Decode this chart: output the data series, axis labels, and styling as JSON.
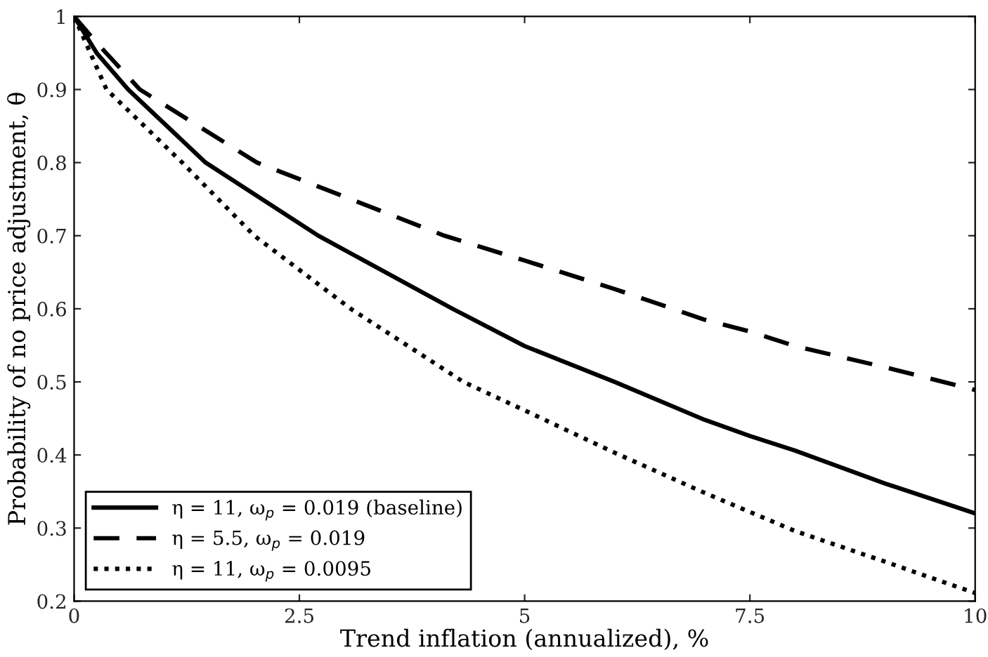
{
  "chart_data": {
    "type": "line",
    "xlabel": "Trend inflation (annualized), %",
    "ylabel": "Probability of no price adjustment, θ",
    "xlim": [
      0,
      10
    ],
    "xticks": [
      0,
      2.5,
      5,
      7.5,
      10
    ],
    "ylim": [
      0.2,
      1
    ],
    "yticks": [
      0.2,
      0.3,
      0.4,
      0.5,
      0.6,
      0.7,
      0.8,
      0.9,
      1
    ],
    "grid": false,
    "legend": "bottom left",
    "series": [
      {
        "name": "η = 11, ω$_{p}$ = 0.019 (baseline)",
        "color": "#000000",
        "line_style": "solid",
        "x": [
          0,
          0.25,
          0.6,
          1.46,
          2.71,
          4.2,
          5,
          6,
          7,
          7.5,
          8,
          9,
          10
        ],
        "values": [
          1,
          0.95,
          0.9,
          0.8,
          0.7,
          0.6,
          0.549,
          0.5,
          0.448,
          0.426,
          0.406,
          0.361,
          0.32
        ]
      },
      {
        "name": "η = 5.5, ω$_{p}$ = 0.019",
        "color": "#000000",
        "line_style": "dashed",
        "x": [
          0,
          0.25,
          0.73,
          2.03,
          4.11,
          5,
          6,
          7,
          7.5,
          8,
          9,
          10
        ],
        "values": [
          1,
          0.964,
          0.9,
          0.8,
          0.7,
          0.666,
          0.627,
          0.585,
          0.569,
          0.549,
          0.52,
          0.489
        ]
      },
      {
        "name": "η = 11, ω$_{p}$ = 0.0095",
        "color": "#000000",
        "line_style": "dotted",
        "x": [
          0,
          0.36,
          1.2,
          2.0,
          3.07,
          4.32,
          5,
          6,
          7,
          7.5,
          8,
          9,
          10
        ],
        "values": [
          1,
          0.9,
          0.8,
          0.7,
          0.6,
          0.5,
          0.461,
          0.403,
          0.348,
          0.322,
          0.296,
          0.254,
          0.211
        ]
      }
    ]
  }
}
